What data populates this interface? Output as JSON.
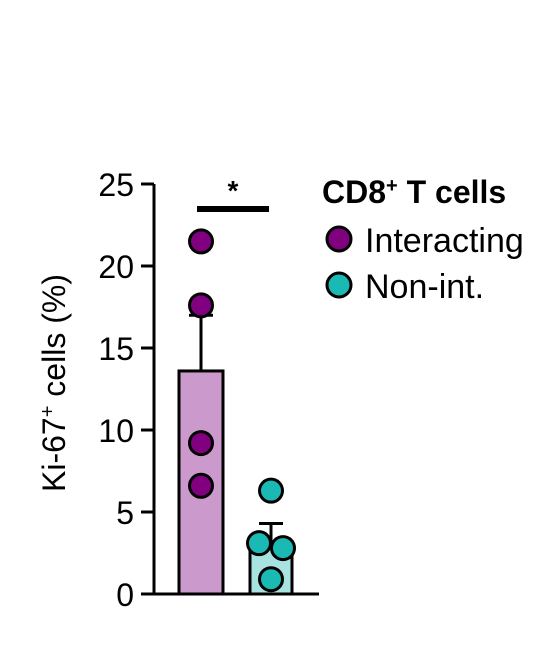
{
  "chart_data": {
    "type": "bar",
    "categories": [
      "Interacting",
      "Non-int."
    ],
    "values": [
      13.6,
      3.2
    ],
    "error_bars_upper": [
      17.0,
      4.3
    ],
    "points": [
      [
        21.5,
        17.6,
        9.2,
        6.6
      ],
      [
        6.3,
        3.1,
        2.8,
        0.9
      ]
    ],
    "ylabel_main": "Ki-67",
    "ylabel_sup": "+",
    "ylabel_rest": " cells (%)",
    "ylim": [
      0,
      25
    ],
    "yticks": [
      "0",
      "5",
      "10",
      "15",
      "20",
      "25"
    ],
    "significance": "*",
    "legend": {
      "title_main": "CD8",
      "title_sup": "+",
      "title_rest": " T cells",
      "items": [
        "Interacting",
        "Non-int."
      ]
    },
    "colors": {
      "bar_interacting": "#cc99cc",
      "dot_interacting": "#800080",
      "bar_nonint": "#a8e3e1",
      "dot_nonint": "#1bb9b4",
      "axis": "#000000"
    }
  }
}
